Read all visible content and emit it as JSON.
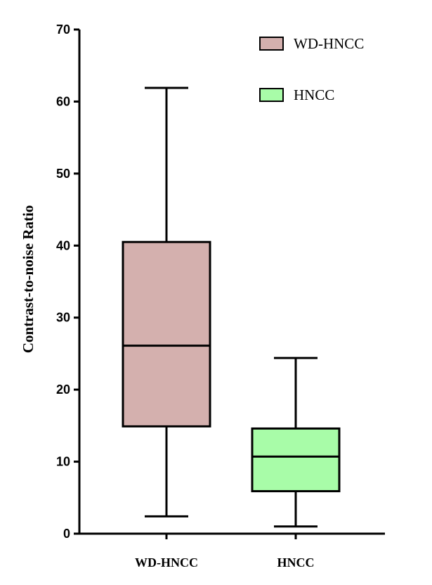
{
  "chart_data": {
    "type": "box",
    "ylabel": "Contrast-to-noise Ratio",
    "xlabel": "",
    "ylim": [
      0,
      70
    ],
    "yticks": [
      0,
      10,
      20,
      30,
      40,
      50,
      60,
      70
    ],
    "categories": [
      "WD-HNCC",
      "HNCC"
    ],
    "series": [
      {
        "name": "WD-HNCC",
        "color": "#d4b0ae",
        "min": 2.4,
        "q1": 14.9,
        "median": 26.1,
        "q3": 40.5,
        "max": 61.9
      },
      {
        "name": "HNCC",
        "color": "#a8fca8",
        "min": 1.0,
        "q1": 5.9,
        "median": 10.7,
        "q3": 14.6,
        "max": 24.4
      }
    ],
    "legend": {
      "position": "top-right",
      "entries": [
        "WD-HNCC",
        "HNCC"
      ]
    },
    "grid": false
  }
}
